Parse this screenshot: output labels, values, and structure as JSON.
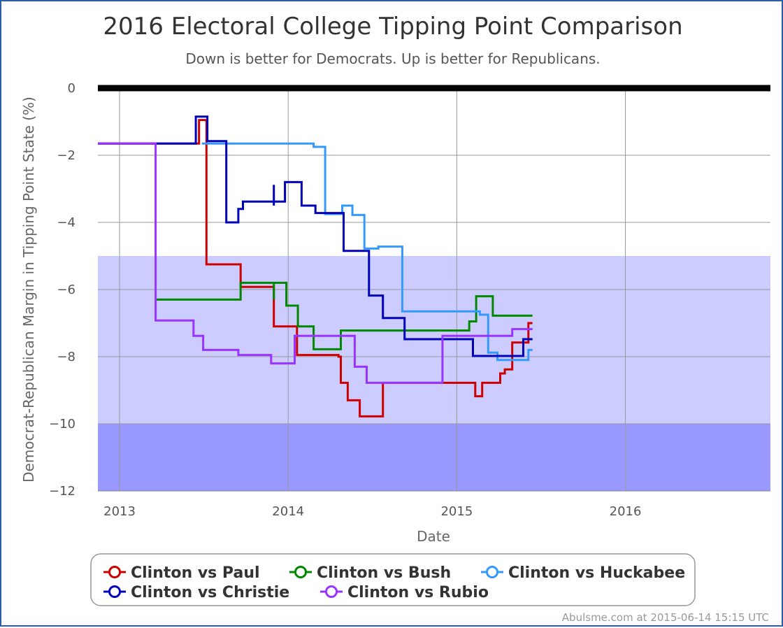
{
  "chart_data": {
    "type": "line",
    "title": "2016 Electoral College Tipping Point Comparison",
    "subtitle": "Down is better for Democrats. Up is better for Republicans.",
    "xlabel": "Date",
    "ylabel": "Democrat-Republican Margin in Tipping Point State (%)",
    "xlim": [
      "2012-11-15",
      "2016-11-10"
    ],
    "ylim": [
      -12,
      0
    ],
    "x_ticks": [
      "2013",
      "2014",
      "2015",
      "2016"
    ],
    "x_tick_dates": [
      "2013-01-01",
      "2014-01-01",
      "2015-01-01",
      "2016-01-01"
    ],
    "y_ticks": [
      0,
      -2,
      -4,
      -6,
      -8,
      -10,
      -12
    ],
    "y_tick_labels": [
      "0",
      "−2",
      "−4",
      "−6",
      "−8",
      "−10",
      "−12"
    ],
    "grid": true,
    "legend_position": "bottom",
    "bands": [
      {
        "from": -5,
        "to": -10,
        "color": "#ccccff"
      },
      {
        "from": -10,
        "to": -12,
        "color": "#9999ff"
      }
    ],
    "zero_line_color": "#000000",
    "series": [
      {
        "name": "Clinton vs Paul",
        "color": "#cc0000",
        "points": [
          [
            "2012-11-15",
            -1.65
          ],
          [
            "2013-06-22",
            -1.65
          ],
          [
            "2013-06-22",
            -0.95
          ],
          [
            "2013-07-08",
            -0.95
          ],
          [
            "2013-07-08",
            -5.25
          ],
          [
            "2013-09-20",
            -5.25
          ],
          [
            "2013-09-20",
            -5.92
          ],
          [
            "2013-12-01",
            -5.92
          ],
          [
            "2013-12-01",
            -7.1
          ],
          [
            "2014-01-20",
            -7.1
          ],
          [
            "2014-01-20",
            -7.95
          ],
          [
            "2014-04-20",
            -7.95
          ],
          [
            "2014-04-20",
            -8.0
          ],
          [
            "2014-04-25",
            -8.0
          ],
          [
            "2014-04-25",
            -8.78
          ],
          [
            "2014-05-10",
            -8.78
          ],
          [
            "2014-05-10",
            -9.3
          ],
          [
            "2014-06-05",
            -9.3
          ],
          [
            "2014-06-05",
            -9.78
          ],
          [
            "2014-07-25",
            -9.78
          ],
          [
            "2014-07-25",
            -8.78
          ],
          [
            "2015-02-10",
            -8.78
          ],
          [
            "2015-02-10",
            -9.18
          ],
          [
            "2015-02-25",
            -9.18
          ],
          [
            "2015-02-25",
            -8.78
          ],
          [
            "2015-04-05",
            -8.78
          ],
          [
            "2015-04-05",
            -8.5
          ],
          [
            "2015-04-15",
            -8.5
          ],
          [
            "2015-04-15",
            -8.38
          ],
          [
            "2015-05-01",
            -8.38
          ],
          [
            "2015-05-01",
            -7.58
          ],
          [
            "2015-06-05",
            -7.58
          ],
          [
            "2015-06-05",
            -7.0
          ],
          [
            "2015-06-14",
            -7.0
          ]
        ]
      },
      {
        "name": "Clinton vs Bush",
        "color": "#008800",
        "points": [
          [
            "2013-03-20",
            -6.3
          ],
          [
            "2013-09-20",
            -6.3
          ],
          [
            "2013-09-20",
            -5.8
          ],
          [
            "2013-12-01",
            -5.8
          ],
          [
            "2013-12-01",
            -6.3
          ],
          [
            "2013-12-01",
            -5.8
          ],
          [
            "2013-12-28",
            -5.8
          ],
          [
            "2013-12-28",
            -6.48
          ],
          [
            "2014-01-22",
            -6.48
          ],
          [
            "2014-01-22",
            -7.1
          ],
          [
            "2014-02-25",
            -7.1
          ],
          [
            "2014-02-25",
            -7.78
          ],
          [
            "2014-04-25",
            -7.78
          ],
          [
            "2014-04-25",
            -7.22
          ],
          [
            "2015-01-28",
            -7.22
          ],
          [
            "2015-01-28",
            -6.95
          ],
          [
            "2015-02-12",
            -6.95
          ],
          [
            "2015-02-12",
            -6.2
          ],
          [
            "2015-03-20",
            -6.2
          ],
          [
            "2015-03-20",
            -6.78
          ],
          [
            "2015-06-14",
            -6.78
          ]
        ]
      },
      {
        "name": "Clinton vs Huckabee",
        "color": "#3399ff",
        "points": [
          [
            "2013-06-28",
            -1.65
          ],
          [
            "2014-02-25",
            -1.65
          ],
          [
            "2014-02-25",
            -1.75
          ],
          [
            "2014-03-22",
            -1.75
          ],
          [
            "2014-03-22",
            -3.75
          ],
          [
            "2014-04-28",
            -3.75
          ],
          [
            "2014-04-28",
            -3.5
          ],
          [
            "2014-05-20",
            -3.5
          ],
          [
            "2014-05-20",
            -3.78
          ],
          [
            "2014-06-15",
            -3.78
          ],
          [
            "2014-06-15",
            -4.78
          ],
          [
            "2014-07-15",
            -4.78
          ],
          [
            "2014-07-15",
            -4.72
          ],
          [
            "2014-09-05",
            -4.72
          ],
          [
            "2014-09-05",
            -6.65
          ],
          [
            "2015-02-20",
            -6.65
          ],
          [
            "2015-02-20",
            -6.75
          ],
          [
            "2015-03-10",
            -6.75
          ],
          [
            "2015-03-10",
            -7.88
          ],
          [
            "2015-03-30",
            -7.88
          ],
          [
            "2015-03-30",
            -8.1
          ],
          [
            "2015-06-05",
            -8.1
          ],
          [
            "2015-06-05",
            -7.8
          ],
          [
            "2015-06-14",
            -7.8
          ]
        ]
      },
      {
        "name": "Clinton vs Christie",
        "color": "#0000bb",
        "points": [
          [
            "2012-11-15",
            -1.65
          ],
          [
            "2013-06-15",
            -1.65
          ],
          [
            "2013-06-15",
            -0.85
          ],
          [
            "2013-07-10",
            -0.85
          ],
          [
            "2013-07-10",
            -1.58
          ],
          [
            "2013-08-20",
            -1.58
          ],
          [
            "2013-08-20",
            -4.0
          ],
          [
            "2013-09-15",
            -4.0
          ],
          [
            "2013-09-15",
            -3.6
          ],
          [
            "2013-09-25",
            -3.6
          ],
          [
            "2013-09-25",
            -3.38
          ],
          [
            "2013-12-01",
            -3.38
          ],
          [
            "2013-12-01",
            -2.88
          ],
          [
            "2013-12-01",
            -3.5
          ],
          [
            "2013-12-01",
            -3.38
          ],
          [
            "2013-12-25",
            -3.38
          ],
          [
            "2013-12-25",
            -2.8
          ],
          [
            "2014-01-30",
            -2.8
          ],
          [
            "2014-01-30",
            -3.5
          ],
          [
            "2014-03-01",
            -3.5
          ],
          [
            "2014-03-01",
            -3.72
          ],
          [
            "2014-05-01",
            -3.72
          ],
          [
            "2014-05-01",
            -4.85
          ],
          [
            "2014-06-25",
            -4.85
          ],
          [
            "2014-06-25",
            -6.18
          ],
          [
            "2014-07-25",
            -6.18
          ],
          [
            "2014-07-25",
            -6.85
          ],
          [
            "2014-09-10",
            -6.85
          ],
          [
            "2014-09-10",
            -7.48
          ],
          [
            "2015-02-05",
            -7.48
          ],
          [
            "2015-02-05",
            -7.98
          ],
          [
            "2015-05-25",
            -7.98
          ],
          [
            "2015-05-25",
            -7.48
          ],
          [
            "2015-06-14",
            -7.48
          ]
        ]
      },
      {
        "name": "Clinton vs Rubio",
        "color": "#9933ff",
        "points": [
          [
            "2012-11-15",
            -1.65
          ],
          [
            "2013-03-20",
            -1.65
          ],
          [
            "2013-03-20",
            -6.92
          ],
          [
            "2013-06-10",
            -6.92
          ],
          [
            "2013-06-10",
            -7.38
          ],
          [
            "2013-07-01",
            -7.38
          ],
          [
            "2013-07-01",
            -7.8
          ],
          [
            "2013-09-15",
            -7.8
          ],
          [
            "2013-09-15",
            -7.95
          ],
          [
            "2013-11-25",
            -7.95
          ],
          [
            "2013-11-25",
            -8.2
          ],
          [
            "2014-01-15",
            -8.2
          ],
          [
            "2014-01-15",
            -7.38
          ],
          [
            "2014-05-25",
            -7.38
          ],
          [
            "2014-05-25",
            -8.3
          ],
          [
            "2014-06-20",
            -8.3
          ],
          [
            "2014-06-20",
            -8.78
          ],
          [
            "2014-12-01",
            -8.78
          ],
          [
            "2014-12-01",
            -7.38
          ],
          [
            "2015-05-01",
            -7.38
          ],
          [
            "2015-05-01",
            -7.18
          ],
          [
            "2015-06-14",
            -7.18
          ]
        ]
      }
    ]
  },
  "credit": "Abulsme.com at 2015-06-14 15:15 UTC"
}
